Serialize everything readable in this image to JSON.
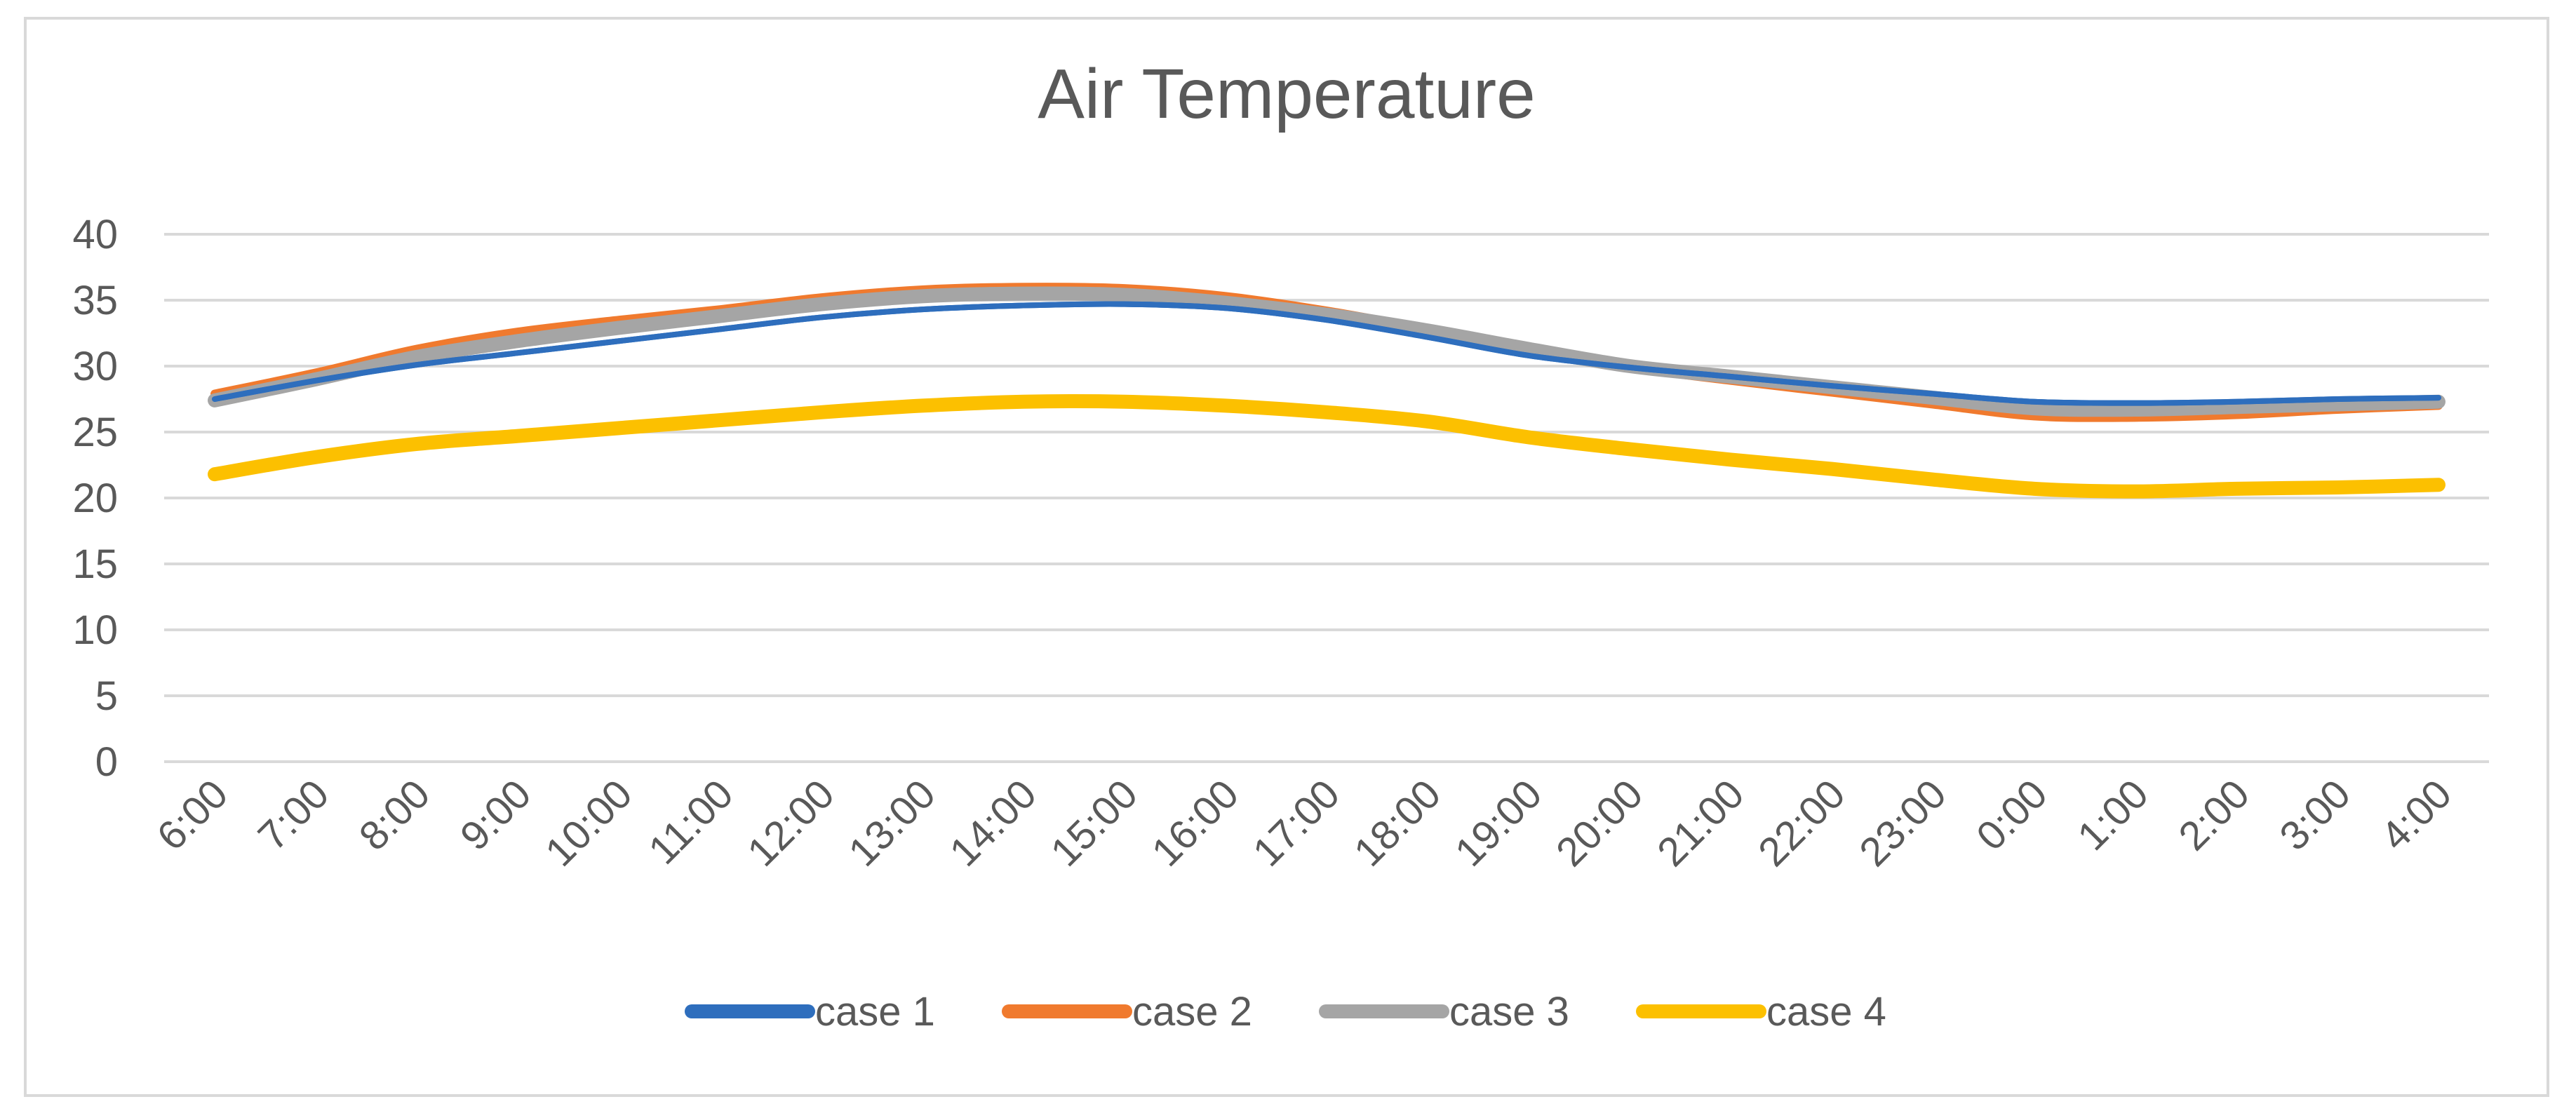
{
  "chart_data": {
    "type": "line",
    "title": "Air Temperature",
    "xlabel": "",
    "ylabel": "",
    "ylim": [
      0,
      40
    ],
    "yticks": [
      "0",
      "5",
      "10",
      "15",
      "20",
      "25",
      "30",
      "35",
      "40"
    ],
    "grid": true,
    "legend": "bottom",
    "categories": [
      "6:00",
      "7:00",
      "8:00",
      "9:00",
      "10:00",
      "11:00",
      "12:00",
      "13:00",
      "14:00",
      "15:00",
      "16:00",
      "17:00",
      "18:00",
      "19:00",
      "20:00",
      "21:00",
      "22:00",
      "23:00",
      "0:00",
      "1:00",
      "2:00",
      "3:00",
      "4:00"
    ],
    "series": [
      {
        "name": "case 1",
        "color": "#2e6ebd",
        "values": [
          27.5,
          28.9,
          30.1,
          31.0,
          31.9,
          32.8,
          33.7,
          34.3,
          34.6,
          34.7,
          34.4,
          33.5,
          32.2,
          30.8,
          29.9,
          29.2,
          28.5,
          27.9,
          27.3,
          27.2,
          27.3,
          27.5,
          27.6
        ]
      },
      {
        "name": "case 2",
        "color": "#f07a2e",
        "values": [
          27.9,
          29.5,
          31.3,
          32.6,
          33.5,
          34.3,
          35.2,
          35.8,
          36.0,
          35.9,
          35.3,
          34.2,
          32.8,
          31.3,
          29.9,
          28.9,
          28.0,
          27.1,
          26.2,
          26.1,
          26.3,
          26.7,
          27.0
        ]
      },
      {
        "name": "case 3",
        "color": "#a5a5a5",
        "values": [
          27.4,
          29.0,
          30.7,
          31.9,
          32.9,
          33.8,
          34.7,
          35.3,
          35.5,
          35.4,
          34.8,
          33.9,
          32.7,
          31.3,
          30.0,
          29.2,
          28.4,
          27.6,
          26.8,
          26.7,
          26.9,
          27.1,
          27.3
        ]
      },
      {
        "name": "case 4",
        "color": "#fcc000",
        "values": [
          21.8,
          23.1,
          24.1,
          24.7,
          25.3,
          25.9,
          26.5,
          27.0,
          27.3,
          27.3,
          27.0,
          26.5,
          25.8,
          24.6,
          23.7,
          22.9,
          22.2,
          21.4,
          20.7,
          20.5,
          20.7,
          20.8,
          21.0
        ]
      }
    ]
  }
}
